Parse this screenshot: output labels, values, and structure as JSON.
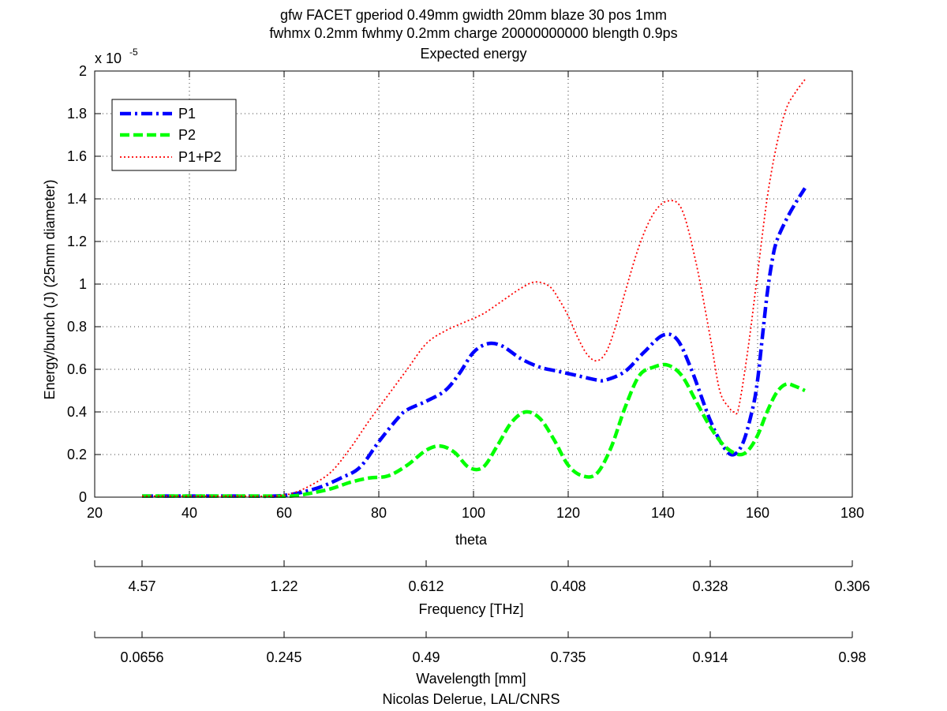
{
  "chart_data": {
    "type": "line",
    "title": [
      "gfw FACET gperiod 0.49mm gwidth 20mm blaze 30 pos 1mm",
      "fwhmx 0.2mm fwhmy 0.2mm charge 20000000000 blength 0.9ps",
      "Expected energy"
    ],
    "xlabel": "theta",
    "ylabel": "Energy/bunch (J) (25mm diameter)",
    "y_exponent_base": "x 10",
    "y_exponent_power": "-5",
    "xlim": [
      20,
      180
    ],
    "ylim": [
      0,
      2
    ],
    "x_ticks": [
      20,
      40,
      60,
      80,
      100,
      120,
      140,
      160,
      180
    ],
    "y_ticks": [
      "0",
      "0.2",
      "0.4",
      "0.6",
      "0.8",
      "1",
      "1.2",
      "1.4",
      "1.6",
      "1.8",
      "2"
    ],
    "grid": true,
    "legend_position": "top-left",
    "series": [
      {
        "name": "P1",
        "color": "#0000ff",
        "style": "dashdot",
        "x": [
          30,
          40,
          50,
          58,
          62,
          65,
          68,
          72,
          76,
          80,
          84,
          86,
          90,
          94,
          97,
          100,
          103,
          106,
          110,
          114,
          118,
          122,
          126,
          128,
          132,
          136,
          140,
          143,
          146,
          150,
          153,
          155,
          157,
          159,
          160,
          161,
          162,
          163,
          164,
          166,
          168,
          170
        ],
        "values": [
          0.005,
          0.005,
          0.005,
          0.005,
          0.015,
          0.03,
          0.05,
          0.09,
          0.14,
          0.26,
          0.37,
          0.41,
          0.45,
          0.5,
          0.58,
          0.68,
          0.72,
          0.71,
          0.65,
          0.61,
          0.59,
          0.57,
          0.55,
          0.55,
          0.59,
          0.68,
          0.76,
          0.74,
          0.6,
          0.36,
          0.23,
          0.2,
          0.26,
          0.42,
          0.55,
          0.75,
          0.95,
          1.1,
          1.2,
          1.3,
          1.38,
          1.45
        ]
      },
      {
        "name": "P2",
        "color": "#00ff00",
        "style": "dashed",
        "x": [
          30,
          40,
          50,
          58,
          62,
          66,
          70,
          74,
          78,
          82,
          86,
          90,
          93,
          96,
          99,
          102,
          105,
          108,
          111,
          114,
          117,
          120,
          123,
          126,
          129,
          132,
          135,
          138,
          141,
          144,
          147,
          150,
          153,
          156,
          158,
          160,
          162,
          164,
          166,
          168,
          170
        ],
        "values": [
          0.005,
          0.005,
          0.005,
          0.005,
          0.006,
          0.02,
          0.04,
          0.07,
          0.09,
          0.1,
          0.15,
          0.22,
          0.24,
          0.21,
          0.14,
          0.14,
          0.24,
          0.35,
          0.4,
          0.37,
          0.27,
          0.15,
          0.1,
          0.11,
          0.23,
          0.42,
          0.57,
          0.61,
          0.62,
          0.57,
          0.45,
          0.33,
          0.24,
          0.2,
          0.22,
          0.29,
          0.4,
          0.49,
          0.53,
          0.52,
          0.5
        ]
      },
      {
        "name": "P1+P2",
        "color": "#ff0000",
        "style": "dotted",
        "x": [
          30,
          40,
          50,
          58,
          62,
          66,
          70,
          74,
          78,
          82,
          86,
          90,
          94,
          98,
          102,
          106,
          110,
          113,
          116,
          118,
          120,
          122,
          124,
          126,
          128,
          130,
          132,
          135,
          138,
          141,
          144,
          147,
          150,
          152,
          154,
          155,
          156,
          158,
          160,
          162,
          164,
          166,
          168,
          170
        ],
        "values": [
          0.005,
          0.005,
          0.005,
          0.005,
          0.02,
          0.06,
          0.12,
          0.23,
          0.36,
          0.48,
          0.6,
          0.72,
          0.78,
          0.82,
          0.86,
          0.92,
          0.98,
          1.01,
          0.99,
          0.93,
          0.85,
          0.75,
          0.67,
          0.64,
          0.68,
          0.8,
          0.96,
          1.18,
          1.33,
          1.39,
          1.35,
          1.1,
          0.75,
          0.5,
          0.42,
          0.4,
          0.42,
          0.7,
          1.05,
          1.4,
          1.65,
          1.82,
          1.9,
          1.96
        ]
      }
    ],
    "secondary_axes": [
      {
        "label": "Frequency [THz]",
        "ticks": [
          "4.57",
          "1.22",
          "0.612",
          "0.408",
          "0.328",
          "0.306"
        ]
      },
      {
        "label": "Wavelength [mm]",
        "ticks": [
          "0.0656",
          "0.245",
          "0.49",
          "0.735",
          "0.914",
          "0.98"
        ]
      }
    ]
  },
  "credit": "Nicolas Delerue, LAL/CNRS"
}
